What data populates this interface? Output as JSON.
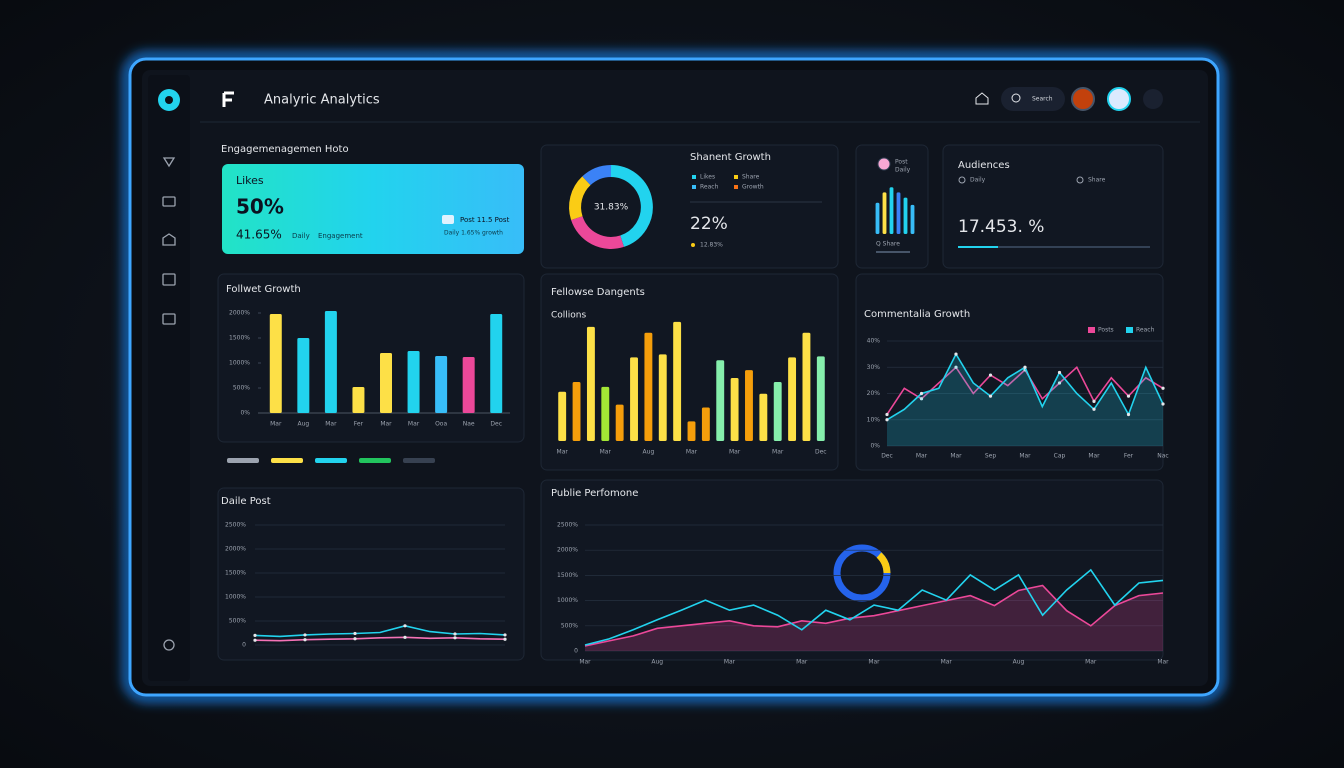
{
  "header": {
    "title": "Analyric Analytics",
    "search": "Search"
  },
  "engagement": {
    "title": "Engagemenagemen Hoto",
    "label": "Likes",
    "value": "50%",
    "sub_value": "41.65%",
    "sub_note_1": "Daily",
    "sub_note_2": "Engagement",
    "badge": "Post 11.5 Post",
    "badge_note": "Daily 1.65% growth"
  },
  "share_growth": {
    "title": "Shanent Growth",
    "legend": [
      "Likes",
      "Share",
      "Reach",
      "Growth"
    ],
    "value": "22%",
    "note": "12.83%"
  },
  "mini": {
    "title": "Post",
    "sub": "Daily",
    "footer": "Q Share"
  },
  "audience": {
    "title": "Audiences",
    "legend": [
      "Daily",
      "Share"
    ],
    "value": "17.453. %"
  },
  "chart_data": [
    {
      "type": "bar",
      "title": "Follwet Growth",
      "categories": [
        "Mar",
        "Aug",
        "Mar",
        "Fer",
        "Mar",
        "Mar",
        "Ooa",
        "Nae",
        "Dec"
      ],
      "values": [
        1980,
        1500,
        2040,
        520,
        1200,
        1240,
        1140,
        1120,
        1980
      ],
      "colors": [
        "#fde047",
        "#22d3ee",
        "#22d3ee",
        "#fde047",
        "#fde047",
        "#22d3ee",
        "#38bdf8",
        "#ec4899",
        "#22d3ee"
      ],
      "ylim": [
        0,
        2100
      ],
      "yticks": [
        {
          "value": 0,
          "label": "0%"
        },
        {
          "value": 500,
          "label": "500%"
        },
        {
          "value": 1000,
          "label": "1000%"
        },
        {
          "value": 1500,
          "label": "1500%"
        },
        {
          "value": 2000,
          "label": "2000%"
        }
      ]
    },
    {
      "type": "bar",
      "title": "Fellowse Dangents",
      "subtitle": "Collions",
      "categories": [
        "Mar",
        null,
        null,
        "Mar",
        null,
        null,
        "Aug",
        null,
        null,
        "Mar",
        null,
        null,
        "Mar",
        null,
        null,
        "Mar",
        null,
        null,
        "Dec"
      ],
      "values": [
        50,
        60,
        116,
        55,
        37,
        85,
        110,
        88,
        121,
        20,
        34,
        82,
        64,
        72,
        48,
        60,
        85,
        110,
        86
      ],
      "colors": [
        "#fde047",
        "#f59e0b",
        "#fde047",
        "#a3e635",
        "#f59e0b",
        "#fde047",
        "#f59e0b",
        "#fde047",
        "#fde047",
        "#f59e0b",
        "#f59e0b",
        "#86efac",
        "#fde047",
        "#f59e0b",
        "#fde047",
        "#86efac",
        "#fde047",
        "#fde047",
        "#86efac"
      ],
      "ylim": [
        0,
        125
      ]
    },
    {
      "type": "line",
      "title": "Commentalia Growth",
      "categories": [
        "Dec",
        null,
        "Mar",
        null,
        "Mar",
        null,
        "Sep",
        null,
        "Mar",
        null,
        "Cap",
        null,
        "Mar",
        null,
        "Fer",
        null,
        "Nac"
      ],
      "series": [
        {
          "name": "Posts",
          "color": "#ec4899",
          "values": [
            12,
            22,
            18,
            24,
            30,
            20,
            27,
            23,
            29,
            18,
            24,
            30,
            17,
            26,
            19,
            26,
            22
          ]
        },
        {
          "name": "Reach",
          "color": "#22d3ee",
          "area": true,
          "values": [
            10,
            14,
            20,
            22,
            35,
            24,
            19,
            26,
            30,
            15,
            28,
            20,
            14,
            24,
            12,
            30,
            16
          ]
        }
      ],
      "ylim": [
        0,
        40
      ],
      "yticks": [
        {
          "value": 0,
          "label": "0%"
        },
        {
          "value": 10,
          "label": "10%"
        },
        {
          "value": 20,
          "label": "20%"
        },
        {
          "value": 30,
          "label": "30%"
        },
        {
          "value": 40,
          "label": "40%"
        }
      ],
      "grid": true,
      "markers": true,
      "legend": "top-right"
    },
    {
      "type": "line",
      "title": "Daile Post",
      "series": [
        {
          "color": "#22d3ee",
          "values": [
            200,
            180,
            210,
            230,
            240,
            260,
            400,
            280,
            230,
            240,
            210
          ]
        },
        {
          "color": "#f472b6",
          "values": [
            100,
            90,
            110,
            120,
            130,
            150,
            160,
            140,
            150,
            130,
            120
          ]
        }
      ],
      "ylim": [
        0,
        2500
      ],
      "yticks": [
        0,
        {
          "value": 500,
          "label": "500%"
        },
        {
          "value": 1000,
          "label": "1000%"
        },
        {
          "value": 1500,
          "label": "1500%"
        },
        {
          "value": 2000,
          "label": "2000%"
        },
        {
          "value": 2500,
          "label": "2500%"
        }
      ],
      "grid": true,
      "markers": true
    },
    {
      "type": "line",
      "title": "Publie Perfomone",
      "categories": [
        "Mar",
        null,
        null,
        "Aug",
        null,
        null,
        "Mar",
        null,
        null,
        "Mar",
        null,
        null,
        "Mar",
        null,
        null,
        "Mar",
        null,
        null,
        "Aug",
        null,
        null,
        "Mar",
        null,
        null,
        "Mar"
      ],
      "series": [
        {
          "color": "#ec4899",
          "area": true,
          "values": [
            100,
            200,
            300,
            450,
            500,
            550,
            600,
            500,
            480,
            600,
            550,
            650,
            700,
            800,
            900,
            1000,
            1100,
            900,
            1200,
            1300,
            800,
            500,
            900,
            1100,
            1150
          ]
        },
        {
          "color": "#22d3ee",
          "values": [
            120,
            240,
            420,
            620,
            810,
            1010,
            810,
            910,
            710,
            420,
            810,
            620,
            910,
            810,
            1210,
            1010,
            1510,
            1210,
            1510,
            710,
            1210,
            1610,
            910,
            1350,
            1400
          ]
        }
      ],
      "ylim": [
        0,
        2500
      ],
      "yticks": [
        0,
        {
          "value": 500,
          "label": "500%"
        },
        {
          "value": 1000,
          "label": "1000%"
        },
        {
          "value": 1500,
          "label": "1500%"
        },
        {
          "value": 2000,
          "label": "2000%"
        },
        {
          "value": 2500,
          "label": "2500%"
        }
      ],
      "grid": true
    },
    {
      "type": "donut",
      "center_label": "31.83%",
      "values": [
        45,
        25,
        18,
        12
      ],
      "colors": [
        "#22d3ee",
        "#ec4899",
        "#facc15",
        "#3b82f6"
      ]
    },
    {
      "type": "bar",
      "values": [
        30,
        40,
        45,
        40,
        35,
        28
      ],
      "colors": [
        "#38bdf8",
        "#fde047",
        "#22d3ee",
        "#3b82f6",
        "#22d3ee",
        "#38bdf8"
      ],
      "ylim": [
        0,
        50
      ]
    }
  ]
}
